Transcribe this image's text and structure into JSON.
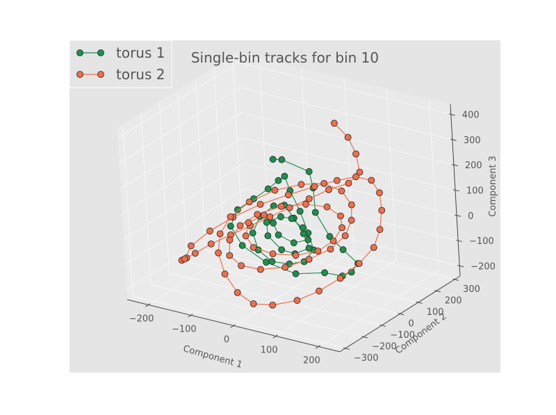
{
  "chart_data": {
    "type": "scatter",
    "projection": "3d",
    "title": "Single-bin tracks for bin 10",
    "legend_position": "top-left",
    "grid": true,
    "axes": {
      "x": {
        "label": "Component 1",
        "range": [
          -250,
          250
        ],
        "ticks": [
          -200,
          -100,
          0,
          100,
          200
        ],
        "tick_labels": [
          "−200",
          "−100",
          "0",
          "100",
          "200"
        ]
      },
      "y": {
        "label": "Component 2",
        "range": [
          -330,
          330
        ],
        "ticks": [
          -300,
          -200,
          -100,
          0,
          100,
          200,
          300
        ],
        "tick_labels": [
          "−300",
          "−200",
          "−100",
          "0",
          "100",
          "200",
          "300"
        ]
      },
      "z": {
        "label": "Component 3",
        "range": [
          -240,
          440
        ],
        "ticks": [
          -200,
          -100,
          0,
          100,
          200,
          300,
          400
        ],
        "tick_labels": [
          "−200",
          "−100",
          "0",
          "100",
          "200",
          "300",
          "400"
        ]
      }
    },
    "series": [
      {
        "name": "torus 1",
        "color": "#1e8f4e",
        "marker": "circle",
        "points": [
          [
            -50,
            40,
            230
          ],
          [
            -20,
            20,
            250
          ],
          [
            30,
            50,
            210
          ],
          [
            60,
            0,
            180
          ],
          [
            80,
            -40,
            110
          ],
          [
            120,
            -60,
            40
          ],
          [
            150,
            -60,
            0
          ],
          [
            170,
            -30,
            -60
          ],
          [
            140,
            0,
            -120
          ],
          [
            100,
            40,
            -170
          ],
          [
            40,
            80,
            -200
          ],
          [
            -20,
            60,
            -220
          ],
          [
            -80,
            40,
            -190
          ],
          [
            -130,
            30,
            -140
          ],
          [
            -160,
            40,
            -80
          ],
          [
            -150,
            60,
            -20
          ],
          [
            -110,
            60,
            40
          ],
          [
            -70,
            50,
            100
          ],
          [
            -40,
            40,
            150
          ],
          [
            -20,
            30,
            180
          ],
          [
            0,
            10,
            140
          ],
          [
            30,
            -10,
            80
          ],
          [
            60,
            -40,
            20
          ],
          [
            80,
            -60,
            -30
          ],
          [
            60,
            -70,
            -80
          ],
          [
            20,
            -60,
            -110
          ],
          [
            -30,
            -40,
            -130
          ],
          [
            -70,
            -20,
            -110
          ],
          [
            -90,
            0,
            -60
          ],
          [
            -80,
            20,
            0
          ],
          [
            -50,
            30,
            50
          ],
          [
            -20,
            20,
            70
          ],
          [
            10,
            0,
            40
          ],
          [
            40,
            -20,
            0
          ],
          [
            60,
            -40,
            -40
          ],
          [
            30,
            -50,
            -70
          ],
          [
            -10,
            -30,
            -80
          ],
          [
            -50,
            -10,
            -50
          ],
          [
            -60,
            10,
            -10
          ],
          [
            -30,
            20,
            20
          ],
          [
            0,
            10,
            30
          ],
          [
            30,
            0,
            10
          ],
          [
            50,
            -20,
            -20
          ],
          [
            20,
            -30,
            -40
          ],
          [
            -20,
            -20,
            -30
          ],
          [
            -40,
            0,
            0
          ]
        ]
      },
      {
        "name": "torus 2",
        "color": "#ee6f4a",
        "marker": "circle",
        "points": [
          [
            20,
            220,
            320
          ],
          [
            60,
            200,
            290
          ],
          [
            90,
            170,
            250
          ],
          [
            110,
            140,
            200
          ],
          [
            100,
            100,
            170
          ],
          [
            70,
            60,
            150
          ],
          [
            40,
            20,
            120
          ],
          [
            10,
            -20,
            90
          ],
          [
            -20,
            -60,
            60
          ],
          [
            -50,
            -100,
            30
          ],
          [
            -80,
            -140,
            0
          ],
          [
            -110,
            -180,
            -30
          ],
          [
            -140,
            -200,
            -70
          ],
          [
            -170,
            -180,
            -110
          ],
          [
            -200,
            -140,
            -150
          ],
          [
            -220,
            -80,
            -180
          ],
          [
            -230,
            -20,
            -160
          ],
          [
            -210,
            40,
            -120
          ],
          [
            -180,
            100,
            -80
          ],
          [
            -140,
            160,
            -40
          ],
          [
            -90,
            200,
            0
          ],
          [
            -40,
            230,
            40
          ],
          [
            10,
            240,
            80
          ],
          [
            60,
            230,
            120
          ],
          [
            110,
            200,
            140
          ],
          [
            150,
            150,
            130
          ],
          [
            180,
            90,
            100
          ],
          [
            200,
            30,
            60
          ],
          [
            210,
            -30,
            20
          ],
          [
            200,
            -90,
            -20
          ],
          [
            180,
            -150,
            -60
          ],
          [
            150,
            -200,
            -100
          ],
          [
            110,
            -230,
            -140
          ],
          [
            60,
            -250,
            -170
          ],
          [
            10,
            -240,
            -190
          ],
          [
            -40,
            -210,
            -180
          ],
          [
            -90,
            -160,
            -150
          ],
          [
            -130,
            -100,
            -110
          ],
          [
            -150,
            -40,
            -70
          ],
          [
            -150,
            20,
            -30
          ],
          [
            -130,
            80,
            10
          ],
          [
            -90,
            130,
            50
          ],
          [
            -40,
            160,
            80
          ],
          [
            10,
            170,
            100
          ],
          [
            60,
            150,
            100
          ],
          [
            100,
            110,
            80
          ],
          [
            120,
            60,
            50
          ],
          [
            130,
            0,
            20
          ],
          [
            120,
            -60,
            -10
          ],
          [
            90,
            -110,
            -40
          ],
          [
            50,
            -150,
            -70
          ],
          [
            0,
            -170,
            -90
          ],
          [
            -50,
            -160,
            -100
          ],
          [
            -90,
            -130,
            -90
          ],
          [
            -110,
            -80,
            -60
          ],
          [
            -110,
            -20,
            -30
          ],
          [
            -90,
            30,
            0
          ],
          [
            -50,
            70,
            30
          ],
          [
            0,
            90,
            50
          ],
          [
            50,
            90,
            60
          ],
          [
            90,
            70,
            50
          ],
          [
            110,
            30,
            30
          ],
          [
            110,
            -20,
            0
          ],
          [
            90,
            -60,
            -30
          ],
          [
            50,
            -90,
            -50
          ],
          [
            0,
            -100,
            -60
          ],
          [
            -50,
            -90,
            -60
          ],
          [
            -80,
            -60,
            -40
          ],
          [
            -90,
            -20,
            -10
          ],
          [
            -70,
            20,
            10
          ]
        ]
      }
    ]
  }
}
